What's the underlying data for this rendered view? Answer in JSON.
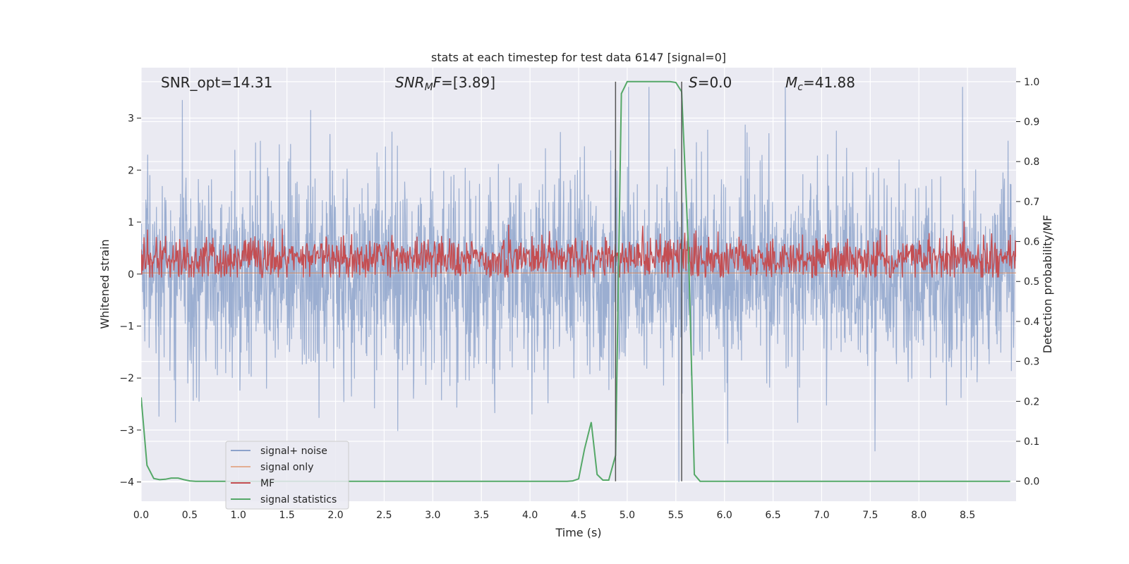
{
  "chart_data": {
    "type": "line",
    "title": "stats at each timestep for test data 6147 [signal=0]",
    "xlabel": "Time (s)",
    "ylabel": "Whitened strain",
    "ylabel_right": "Detection probability/MF",
    "xlim": [
      0,
      9.0
    ],
    "ylim": [
      -4.37,
      3.97
    ],
    "ylim_right": [
      -0.05,
      1.035
    ],
    "x_ticks": [
      "0.0",
      "0.5",
      "1.0",
      "1.5",
      "2.0",
      "2.5",
      "3.0",
      "3.5",
      "4.0",
      "4.5",
      "5.0",
      "5.5",
      "6.0",
      "6.5",
      "7.0",
      "7.5",
      "8.0",
      "8.5"
    ],
    "y_ticks": [
      "−4",
      "−3",
      "−2",
      "−1",
      "0",
      "1",
      "2",
      "3"
    ],
    "y_ticks_right": [
      "0.0",
      "0.1",
      "0.2",
      "0.3",
      "0.4",
      "0.5",
      "0.6",
      "0.7",
      "0.8",
      "0.9",
      "1.0"
    ],
    "grid": true,
    "legend_placement": "lower-left",
    "annotations": {
      "snr_opt": "SNR_opt=14.31",
      "snr_mf_italic": "SNR",
      "snr_mf_sub": "M",
      "snr_mf_rest_italic": "F",
      "snr_mf_value": "=[3.89]",
      "s_italic": "S",
      "s_value": "=0.0",
      "mc_italic": "M",
      "mc_sub": "c",
      "mc_value": "=41.88"
    },
    "vlines_x": [
      4.88,
      5.56
    ],
    "series": [
      {
        "name": "signal+ noise",
        "color": "#4c72b0",
        "alpha": 0.5,
        "axis": "left",
        "kind": "noise",
        "typical_range": [
          -2.0,
          2.0
        ],
        "peak_max": 3.6,
        "peak_min": -4.0
      },
      {
        "name": "signal only",
        "color": "#dd8452",
        "alpha": 0.6,
        "axis": "left",
        "kind": "flat",
        "value": 0.02
      },
      {
        "name": "MF",
        "color": "#c44e52",
        "axis": "right",
        "kind": "noise",
        "center": 0.56,
        "spread": 0.05,
        "peak_max": 0.66,
        "peak_min": 0.51
      },
      {
        "name": "signal statistics",
        "color": "#55a868",
        "axis": "right",
        "kind": "line",
        "x": [
          0.0,
          0.06,
          0.13,
          0.19,
          0.25,
          0.31,
          0.38,
          0.44,
          0.5,
          0.56,
          0.63,
          1.0,
          2.0,
          3.0,
          4.0,
          4.38,
          4.44,
          4.5,
          4.56,
          4.63,
          4.69,
          4.75,
          4.81,
          4.88,
          4.94,
          5.0,
          5.06,
          5.13,
          5.25,
          5.38,
          5.44,
          5.5,
          5.56,
          5.63,
          5.69,
          5.75,
          5.81,
          6.0,
          7.0,
          8.0,
          8.94
        ],
        "y": [
          0.21,
          0.04,
          0.007,
          0.004,
          0.005,
          0.008,
          0.008,
          0.004,
          0.001,
          0.0,
          0.0,
          0.0,
          0.0,
          0.0,
          0.0,
          0.0,
          0.001,
          0.006,
          0.08,
          0.148,
          0.017,
          0.003,
          0.003,
          0.065,
          0.97,
          1.0,
          1.0,
          1.0,
          1.0,
          1.0,
          1.0,
          0.998,
          0.975,
          0.58,
          0.017,
          0.0,
          0.0,
          0.0,
          0.0,
          0.0,
          0.0
        ]
      }
    ]
  }
}
